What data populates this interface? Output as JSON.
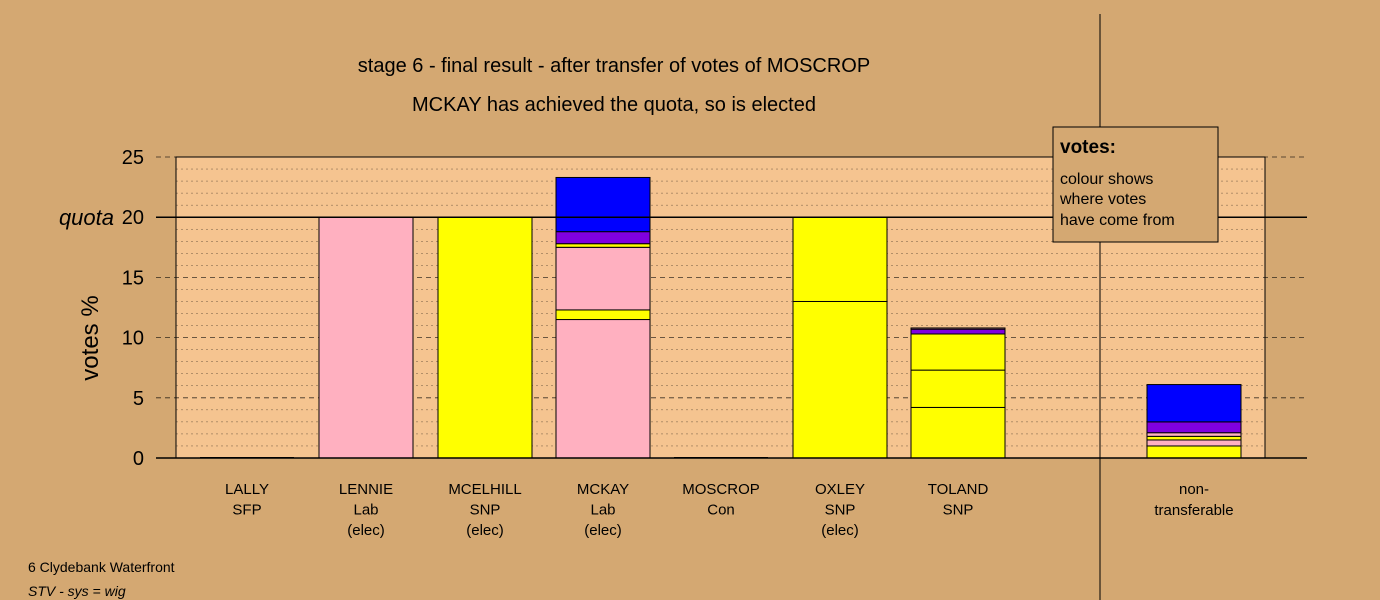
{
  "title_lines": [
    "stage 6 - final result - after transfer of votes of MOSCROP",
    "MCKAY has achieved the quota, so is elected"
  ],
  "chart_data": {
    "type": "bar",
    "stacked": true,
    "ylabel": "votes %",
    "ylim": [
      0,
      25
    ],
    "y_ticks": [
      0,
      5,
      10,
      15,
      20,
      25
    ],
    "quota": 20,
    "quota_label": "quota",
    "grid": true,
    "colors": {
      "Lab": "#ffb0c0",
      "SNP": "#ffff00",
      "purple": "#8000e0",
      "blue": "#0000ff",
      "Con": "#0000ff",
      "SFP": "#8000e0",
      "plot_bg": "#f5c490",
      "page_bg": "#d4a872"
    },
    "categories": [
      {
        "name": "LALLY",
        "party": "SFP",
        "elected": "",
        "segments": []
      },
      {
        "name": "LENNIE",
        "party": "Lab",
        "elected": "(elec)",
        "segments": [
          {
            "value": 20.0,
            "color": "#ffb0c0"
          }
        ]
      },
      {
        "name": "MCELHILL",
        "party": "SNP",
        "elected": "(elec)",
        "segments": [
          {
            "value": 20.0,
            "color": "#ffff00"
          }
        ]
      },
      {
        "name": "MCKAY",
        "party": "Lab",
        "elected": "(elec)",
        "segments": [
          {
            "value": 11.5,
            "color": "#ffb0c0"
          },
          {
            "value": 0.8,
            "color": "#ffff00"
          },
          {
            "value": 5.2,
            "color": "#ffb0c0"
          },
          {
            "value": 0.3,
            "color": "#ffff00"
          },
          {
            "value": 1.0,
            "color": "#8000e0"
          },
          {
            "value": 4.5,
            "color": "#0000ff"
          }
        ]
      },
      {
        "name": "MOSCROP",
        "party": "Con",
        "elected": "",
        "segments": []
      },
      {
        "name": "OXLEY",
        "party": "SNP",
        "elected": "(elec)",
        "segments": [
          {
            "value": 13.0,
            "color": "#ffff00"
          },
          {
            "value": 7.0,
            "color": "#ffff00"
          }
        ]
      },
      {
        "name": "TOLAND",
        "party": "SNP",
        "elected": "",
        "segments": [
          {
            "value": 4.2,
            "color": "#ffff00"
          },
          {
            "value": 3.1,
            "color": "#ffff00"
          },
          {
            "value": 3.0,
            "color": "#ffff00"
          },
          {
            "value": 0.4,
            "color": "#8000e0"
          },
          {
            "value": 0.1,
            "color": "#ffb0c0"
          }
        ]
      }
    ],
    "nontransferable": {
      "label_lines": [
        "non-",
        "transferable"
      ],
      "segments": [
        {
          "value": 1.0,
          "color": "#ffff00"
        },
        {
          "value": 0.5,
          "color": "#ffb0c0"
        },
        {
          "value": 0.3,
          "color": "#ffff00"
        },
        {
          "value": 0.3,
          "color": "#ffb0c0"
        },
        {
          "value": 0.9,
          "color": "#8000e0"
        },
        {
          "value": 3.1,
          "color": "#0000ff"
        }
      ]
    }
  },
  "legend": {
    "title": "votes:",
    "lines": [
      "colour shows",
      "where votes",
      "have come from"
    ]
  },
  "footer": {
    "ward": "6 Clydebank Waterfront",
    "system": "STV - sys = wig"
  }
}
